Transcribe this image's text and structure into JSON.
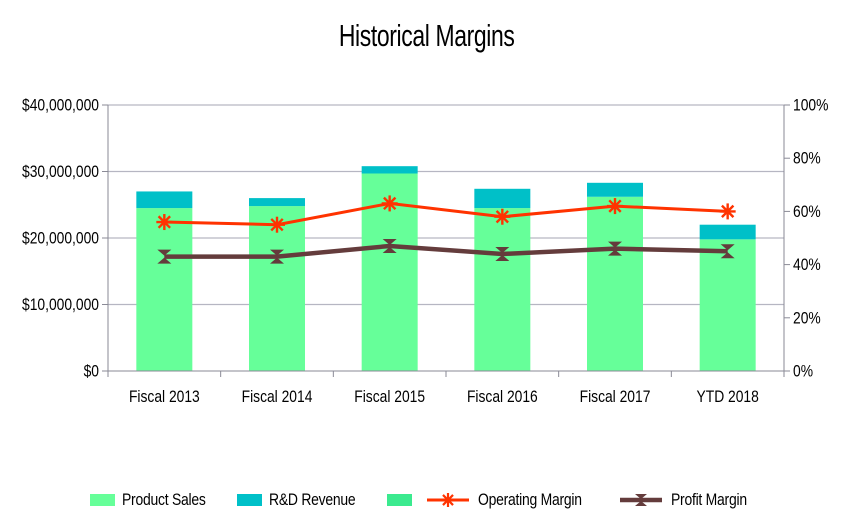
{
  "title": "Historical Margins",
  "chart_data": {
    "type": "bar",
    "subtype": "stacked-bars-with-line-overlay",
    "title": "Historical Margins",
    "categories": [
      "Fiscal 2013",
      "Fiscal 2014",
      "Fiscal 2015",
      "Fiscal 2016",
      "Fiscal 2017",
      "YTD 2018"
    ],
    "bar_series": [
      {
        "name": "Product Sales",
        "color": "#66FF99",
        "axis": "left",
        "values": [
          24500000,
          24800000,
          29700000,
          24500000,
          26200000,
          19800000
        ]
      },
      {
        "name": "R&D Revenue",
        "color": "#00C0C8",
        "axis": "left",
        "values": [
          2500000,
          1200000,
          1100000,
          2900000,
          2100000,
          2200000
        ]
      }
    ],
    "line_series": [
      {
        "name": "Operating Margin",
        "color": "#FF3300",
        "marker": "asterisk",
        "axis": "right",
        "values_pct": [
          56,
          55,
          63,
          58,
          62,
          60
        ]
      },
      {
        "name": "Profit Margin",
        "color": "#643C3C",
        "marker": "hourglass",
        "axis": "right",
        "values_pct": [
          43,
          43,
          47,
          44,
          46,
          45
        ]
      }
    ],
    "left_axis": {
      "min": 0,
      "max": 40000000,
      "tick_labels": [
        "$0",
        "$10,000,000",
        "$20,000,000",
        "$30,000,000",
        "$40,000,000"
      ]
    },
    "right_axis": {
      "min_pct": 0,
      "max_pct": 100,
      "tick_labels": [
        "0%",
        "20%",
        "40%",
        "60%",
        "80%",
        "100%"
      ]
    },
    "grid": "horizontal",
    "legend_position": "bottom",
    "legend": [
      {
        "label": "Product Sales",
        "type": "swatch",
        "color": "#66FF99"
      },
      {
        "label": "R&D Revenue",
        "type": "swatch",
        "color": "#00C0C8"
      },
      {
        "label": "",
        "type": "swatch",
        "color": "#3BEA8F"
      },
      {
        "label": "Operating Margin",
        "type": "line-marker",
        "marker": "asterisk",
        "color": "#FF3300"
      },
      {
        "label": "Profit Margin",
        "type": "line-marker",
        "marker": "hourglass",
        "color": "#643C3C"
      }
    ],
    "colors": {
      "gridline": "#b6b6c2",
      "axis_line": "#8a8a96",
      "background": "#ffffff",
      "text": "#000000"
    }
  }
}
